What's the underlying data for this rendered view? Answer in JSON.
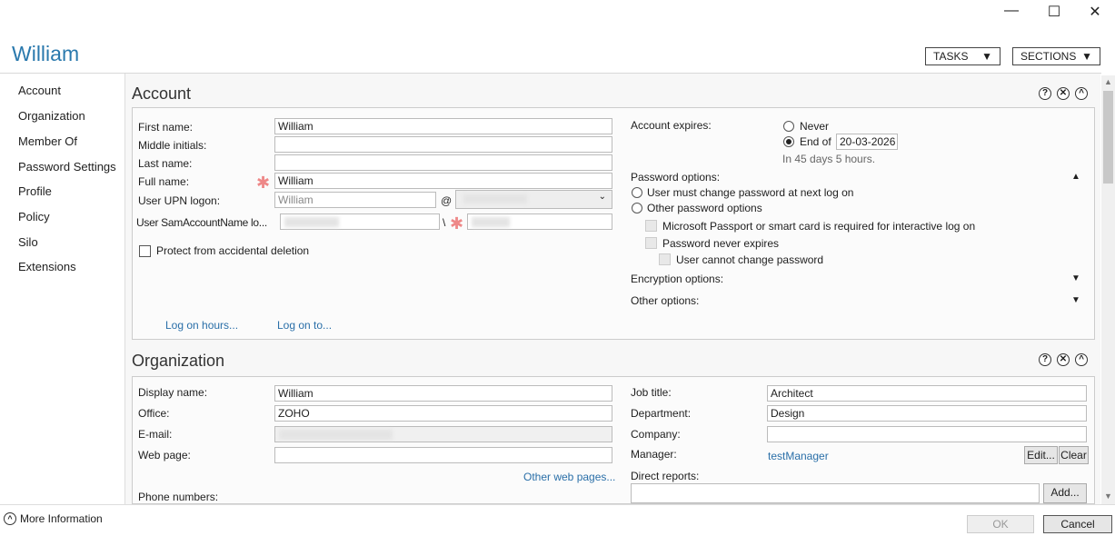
{
  "window": {
    "minimize": "—",
    "maximize": "☐",
    "close": "✕"
  },
  "header": {
    "title": "William",
    "tasks": "TASKS",
    "sections": "SECTIONS"
  },
  "sidebar": {
    "items": [
      {
        "label": "Account"
      },
      {
        "label": "Organization"
      },
      {
        "label": "Member Of"
      },
      {
        "label": "Password Settings"
      },
      {
        "label": "Profile"
      },
      {
        "label": "Policy"
      },
      {
        "label": "Silo"
      },
      {
        "label": "Extensions"
      }
    ]
  },
  "account": {
    "heading": "Account",
    "first_name_label": "First name:",
    "first_name": "William",
    "middle_label": "Middle initials:",
    "middle": "",
    "last_label": "Last name:",
    "last": "",
    "full_label": "Full name:",
    "full": "William",
    "upn_label": "User UPN logon:",
    "upn": "William",
    "at": "@",
    "sam_label": "User SamAccountName lo...",
    "backslash": "\\",
    "protect_label": "Protect from accidental deletion",
    "logon_hours": "Log on hours...",
    "logon_to": "Log on to...",
    "expires_label": "Account expires:",
    "never": "Never",
    "end_of": "End of",
    "end_date": "20-03-2026",
    "expires_note": "In 45 days 5 hours.",
    "pw_options": "Password options:",
    "pw_must_change": "User must change password at next log on",
    "pw_other": "Other password options",
    "passport": "Microsoft Passport or smart card is required for interactive log on",
    "never_expires": "Password never expires",
    "cannot_change": "User cannot change password",
    "encryption": "Encryption options:",
    "other_options": "Other options:"
  },
  "organization": {
    "heading": "Organization",
    "display_label": "Display name:",
    "display": "William",
    "office_label": "Office:",
    "office": "ZOHO",
    "email_label": "E-mail:",
    "web_label": "Web page:",
    "web": "",
    "other_web": "Other web pages...",
    "phone_label": "Phone numbers:",
    "job_label": "Job title:",
    "job": "Architect",
    "dept_label": "Department:",
    "dept": "Design",
    "company_label": "Company:",
    "company": "",
    "manager_label": "Manager:",
    "manager": "testManager",
    "edit": "Edit...",
    "clear": "Clear",
    "direct_label": "Direct reports:",
    "add": "Add..."
  },
  "section_icons": {
    "help": "?",
    "close": "✕",
    "collapse": "^"
  },
  "footer": {
    "more_info": "More Information",
    "ok": "OK",
    "cancel": "Cancel"
  }
}
